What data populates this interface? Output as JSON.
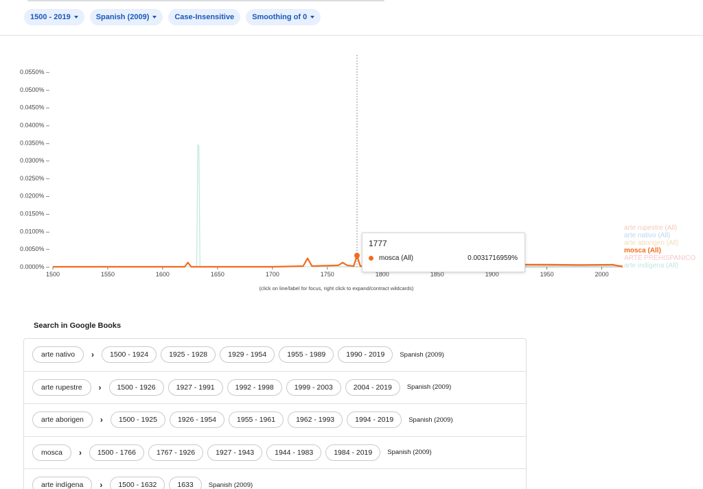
{
  "filters": [
    {
      "label": "1500 - 2019",
      "dropdown": true
    },
    {
      "label": "Spanish (2009)",
      "dropdown": true
    },
    {
      "label": "Case-Insensitive",
      "dropdown": false
    },
    {
      "label": "Smoothing of 0",
      "dropdown": true
    }
  ],
  "chart_data": {
    "type": "line",
    "xlim": [
      1500,
      2019
    ],
    "ylim": [
      0,
      0.00055
    ],
    "x_ticks": [
      "1500",
      "1550",
      "1600",
      "1650",
      "1700",
      "1750",
      "1800",
      "1850",
      "1900",
      "1950",
      "2000"
    ],
    "y_ticks": [
      "0.0000%",
      "0.0050%",
      "0.0100%",
      "0.0150%",
      "0.0200%",
      "0.0250%",
      "0.0300%",
      "0.0350%",
      "0.0400%",
      "0.0450%",
      "0.0500%",
      "0.0550%"
    ],
    "hint": "(click on line/label for focus, right click to expand/contract wildcards)",
    "legend_placement": "right",
    "series": [
      {
        "name": "arte rupestre (All)",
        "color": "#f6c7b9",
        "x": [
          1920,
          1960,
          2000,
          2019
        ],
        "y": [
          2e-06,
          3e-06,
          4e-06,
          4e-06
        ]
      },
      {
        "name": "arte nativo (All)",
        "color": "#bcd7ef",
        "x": [
          1900,
          1950,
          2000,
          2019
        ],
        "y": [
          1e-06,
          2e-06,
          3e-06,
          3e-06
        ]
      },
      {
        "name": "arte aborigen (All)",
        "color": "#f3dcb8",
        "x": [
          1920,
          1960,
          2000,
          2019
        ],
        "y": [
          1e-06,
          2e-06,
          2e-06,
          2e-06
        ]
      },
      {
        "name": "mosca (All)",
        "color": "#f26b1d",
        "x": [
          1500,
          1620,
          1623,
          1626,
          1700,
          1728,
          1732,
          1736,
          1760,
          1764,
          1768,
          1774,
          1777,
          1780,
          1800,
          1850,
          1900,
          1930,
          1950,
          1980,
          2010,
          2019
        ],
        "y": [
          0,
          0,
          1.2e-05,
          0,
          0,
          2e-06,
          2.4e-05,
          2e-06,
          4e-06,
          1.2e-05,
          4e-06,
          2e-06,
          3.17e-05,
          2e-06,
          3e-06,
          4e-06,
          4e-06,
          6e-06,
          6e-06,
          5e-06,
          6e-06,
          0
        ]
      },
      {
        "name": "ARTE PREHISPANICO",
        "color": "#f4c9cf",
        "x": [
          1950,
          1980,
          2019
        ],
        "y": [
          1e-06,
          1e-06,
          1e-06
        ]
      },
      {
        "name": "arte indígena (All)",
        "color": "#bfe6de",
        "x": [
          1500,
          1631,
          1632,
          1633,
          1634,
          1700,
          1900,
          2019
        ],
        "y": [
          0,
          0,
          0.000345,
          0.00034,
          0,
          0,
          1e-06,
          2e-06
        ]
      }
    ],
    "focus_line": {
      "x": 1777
    }
  },
  "tooltip": {
    "year": "1777",
    "label": "mosca (All)",
    "value": "0.0031716959%",
    "color": "#f26b1d"
  },
  "books": {
    "title": "Search in Google Books",
    "rows": [
      {
        "term": "arte nativo",
        "ranges": [
          "1500 - 1924",
          "1925 - 1928",
          "1929 - 1954",
          "1955 - 1989",
          "1990 - 2019"
        ],
        "corpus": "Spanish (2009)"
      },
      {
        "term": "arte rupestre",
        "ranges": [
          "1500 - 1926",
          "1927 - 1991",
          "1992 - 1998",
          "1999 - 2003",
          "2004 - 2019"
        ],
        "corpus": "Spanish (2009)"
      },
      {
        "term": "arte aborigen",
        "ranges": [
          "1500 - 1925",
          "1926 - 1954",
          "1955 - 1961",
          "1962 - 1993",
          "1994 - 2019"
        ],
        "corpus": "Spanish (2009)"
      },
      {
        "term": "mosca",
        "ranges": [
          "1500 - 1766",
          "1767 - 1926",
          "1927 - 1943",
          "1944 - 1983",
          "1984 - 2019"
        ],
        "corpus": "Spanish (2009)"
      },
      {
        "term": "arte indígena",
        "ranges": [
          "1500 - 1632",
          "1633"
        ],
        "corpus": "Spanish (2009)"
      }
    ]
  }
}
